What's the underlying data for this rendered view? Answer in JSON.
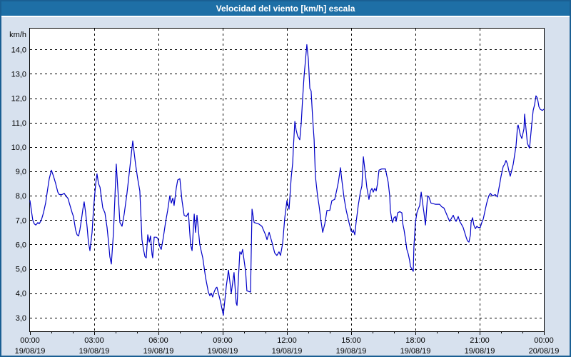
{
  "window": {
    "title": "Velocidad del viento [km/h] escala"
  },
  "colors": {
    "titlebar_bg": "#1e6fa6",
    "titlebar_text": "#ffffff",
    "window_bg": "#d7e1ee",
    "window_border": "#1a5f93",
    "plot_bg": "#ffffff",
    "plot_border": "#000000",
    "grid": "#000000",
    "line": "#0000c8",
    "label_text": "#000000"
  },
  "chart_data": {
    "type": "line",
    "title": "Velocidad del viento [km/h] escala",
    "ylabel": "km/h",
    "xlabel": "",
    "series_name": "Velocidad del viento [km/h]",
    "grid": true,
    "legend": "none",
    "ylim": [
      2.44,
      14.86
    ],
    "xlim_hours": [
      0,
      24
    ],
    "minor_tick_hours": 1,
    "y_ticks": [
      {
        "value": 3,
        "label": "3,0"
      },
      {
        "value": 4,
        "label": "4,0"
      },
      {
        "value": 5,
        "label": "5,0"
      },
      {
        "value": 6,
        "label": "6,0"
      },
      {
        "value": 7,
        "label": "7,0"
      },
      {
        "value": 8,
        "label": "8,0"
      },
      {
        "value": 9,
        "label": "9,0"
      },
      {
        "value": 10,
        "label": "10,0"
      },
      {
        "value": 11,
        "label": "11,0"
      },
      {
        "value": 12,
        "label": "12,0"
      },
      {
        "value": 13,
        "label": "13,0"
      },
      {
        "value": 14,
        "label": "14,0"
      }
    ],
    "x_ticks": [
      {
        "hour": 0,
        "time": "00:00",
        "date": "19/08/19"
      },
      {
        "hour": 3,
        "time": "03:00",
        "date": "19/08/19"
      },
      {
        "hour": 6,
        "time": "06:00",
        "date": "19/08/19"
      },
      {
        "hour": 9,
        "time": "09:00",
        "date": "19/08/19"
      },
      {
        "hour": 12,
        "time": "12:00",
        "date": "19/08/19"
      },
      {
        "hour": 15,
        "time": "15:00",
        "date": "19/08/19"
      },
      {
        "hour": 18,
        "time": "18:00",
        "date": "19/08/19"
      },
      {
        "hour": 21,
        "time": "21:00",
        "date": "19/08/19"
      },
      {
        "hour": 24,
        "time": "00:00",
        "date": "20/08/19"
      }
    ],
    "points_hours_kmh": [
      [
        0,
        7.8
      ],
      [
        0.13,
        7.0
      ],
      [
        0.2,
        6.85
      ],
      [
        0.27,
        6.8
      ],
      [
        0.37,
        6.9
      ],
      [
        0.43,
        6.85
      ],
      [
        0.53,
        7.0
      ],
      [
        0.63,
        7.3
      ],
      [
        0.73,
        7.7
      ],
      [
        0.83,
        8.3
      ],
      [
        0.9,
        8.7
      ],
      [
        1.0,
        9.05
      ],
      [
        1.1,
        8.8
      ],
      [
        1.2,
        8.5
      ],
      [
        1.3,
        8.15
      ],
      [
        1.37,
        8.05
      ],
      [
        1.5,
        8.05
      ],
      [
        1.6,
        8.1
      ],
      [
        1.67,
        8.0
      ],
      [
        1.77,
        7.9
      ],
      [
        1.87,
        7.6
      ],
      [
        1.97,
        7.3
      ],
      [
        2.03,
        7.15
      ],
      [
        2.13,
        6.6
      ],
      [
        2.2,
        6.4
      ],
      [
        2.27,
        6.35
      ],
      [
        2.33,
        6.6
      ],
      [
        2.4,
        7.0
      ],
      [
        2.47,
        7.45
      ],
      [
        2.53,
        7.75
      ],
      [
        2.6,
        7.3
      ],
      [
        2.67,
        6.7
      ],
      [
        2.73,
        6.1
      ],
      [
        2.8,
        5.75
      ],
      [
        2.9,
        6.5
      ],
      [
        2.97,
        7.5
      ],
      [
        3.07,
        8.5
      ],
      [
        3.13,
        8.9
      ],
      [
        3.2,
        8.5
      ],
      [
        3.27,
        8.35
      ],
      [
        3.4,
        7.5
      ],
      [
        3.5,
        7.3
      ],
      [
        3.6,
        6.7
      ],
      [
        3.67,
        6.1
      ],
      [
        3.73,
        5.5
      ],
      [
        3.8,
        5.2
      ],
      [
        3.9,
        6.5
      ],
      [
        3.97,
        8.0
      ],
      [
        4.03,
        9.3
      ],
      [
        4.13,
        7.9
      ],
      [
        4.2,
        6.9
      ],
      [
        4.3,
        6.75
      ],
      [
        4.4,
        7.25
      ],
      [
        4.53,
        8.1
      ],
      [
        4.67,
        9.2
      ],
      [
        4.8,
        10.25
      ],
      [
        4.93,
        9.3
      ],
      [
        5.03,
        8.7
      ],
      [
        5.13,
        8.2
      ],
      [
        5.23,
        6.2
      ],
      [
        5.3,
        5.8
      ],
      [
        5.37,
        5.5
      ],
      [
        5.43,
        5.45
      ],
      [
        5.5,
        6.4
      ],
      [
        5.57,
        6.1
      ],
      [
        5.63,
        6.35
      ],
      [
        5.7,
        5.6
      ],
      [
        5.73,
        5.45
      ],
      [
        5.8,
        6.3
      ],
      [
        5.9,
        6.3
      ],
      [
        5.97,
        6.25
      ],
      [
        6.07,
        5.9
      ],
      [
        6.13,
        5.8
      ],
      [
        6.23,
        6.3
      ],
      [
        6.33,
        6.9
      ],
      [
        6.43,
        7.4
      ],
      [
        6.53,
        8.0
      ],
      [
        6.6,
        7.7
      ],
      [
        6.67,
        7.9
      ],
      [
        6.73,
        7.6
      ],
      [
        6.83,
        8.3
      ],
      [
        6.9,
        8.65
      ],
      [
        7.0,
        8.7
      ],
      [
        7.1,
        7.8
      ],
      [
        7.2,
        7.2
      ],
      [
        7.3,
        7.15
      ],
      [
        7.4,
        7.3
      ],
      [
        7.5,
        6.0
      ],
      [
        7.57,
        5.75
      ],
      [
        7.67,
        7.25
      ],
      [
        7.73,
        6.5
      ],
      [
        7.8,
        7.2
      ],
      [
        7.93,
        6.0
      ],
      [
        8.07,
        5.45
      ],
      [
        8.2,
        4.65
      ],
      [
        8.33,
        4.05
      ],
      [
        8.4,
        3.9
      ],
      [
        8.47,
        4.0
      ],
      [
        8.53,
        3.85
      ],
      [
        8.6,
        4.05
      ],
      [
        8.67,
        4.2
      ],
      [
        8.73,
        4.25
      ],
      [
        8.83,
        3.9
      ],
      [
        8.9,
        3.65
      ],
      [
        8.97,
        3.35
      ],
      [
        9.03,
        3.1
      ],
      [
        9.1,
        3.7
      ],
      [
        9.17,
        4.3
      ],
      [
        9.27,
        4.95
      ],
      [
        9.4,
        4.0
      ],
      [
        9.53,
        4.85
      ],
      [
        9.63,
        3.6
      ],
      [
        9.67,
        3.5
      ],
      [
        9.8,
        5.7
      ],
      [
        9.87,
        5.6
      ],
      [
        9.93,
        5.8
      ],
      [
        10.07,
        4.9
      ],
      [
        10.13,
        4.1
      ],
      [
        10.3,
        4.05
      ],
      [
        10.37,
        7.45
      ],
      [
        10.47,
        6.9
      ],
      [
        10.67,
        6.85
      ],
      [
        10.83,
        6.75
      ],
      [
        11.0,
        6.4
      ],
      [
        11.07,
        6.2
      ],
      [
        11.17,
        6.5
      ],
      [
        11.33,
        6.0
      ],
      [
        11.43,
        5.65
      ],
      [
        11.53,
        5.55
      ],
      [
        11.63,
        5.7
      ],
      [
        11.7,
        5.55
      ],
      [
        11.8,
        6.05
      ],
      [
        11.9,
        7.1
      ],
      [
        12.0,
        7.8
      ],
      [
        12.1,
        7.45
      ],
      [
        12.2,
        8.75
      ],
      [
        12.27,
        9.35
      ],
      [
        12.3,
        9.95
      ],
      [
        12.37,
        11.05
      ],
      [
        12.43,
        10.7
      ],
      [
        12.5,
        10.45
      ],
      [
        12.6,
        10.3
      ],
      [
        12.67,
        11.0
      ],
      [
        12.73,
        11.95
      ],
      [
        12.8,
        12.9
      ],
      [
        12.87,
        13.6
      ],
      [
        12.93,
        14.2
      ],
      [
        13.0,
        13.6
      ],
      [
        13.07,
        12.4
      ],
      [
        13.13,
        12.3
      ],
      [
        13.2,
        11.2
      ],
      [
        13.27,
        10.3
      ],
      [
        13.33,
        8.8
      ],
      [
        13.43,
        8.0
      ],
      [
        13.5,
        7.6
      ],
      [
        13.57,
        7.1
      ],
      [
        13.67,
        6.5
      ],
      [
        13.77,
        6.85
      ],
      [
        13.87,
        7.4
      ],
      [
        14.0,
        7.4
      ],
      [
        14.1,
        7.8
      ],
      [
        14.23,
        7.85
      ],
      [
        14.33,
        8.25
      ],
      [
        14.4,
        8.55
      ],
      [
        14.5,
        9.15
      ],
      [
        14.57,
        8.6
      ],
      [
        14.67,
        7.9
      ],
      [
        14.77,
        7.4
      ],
      [
        14.9,
        6.9
      ],
      [
        15.0,
        6.55
      ],
      [
        15.07,
        6.5
      ],
      [
        15.1,
        6.6
      ],
      [
        15.17,
        6.4
      ],
      [
        15.23,
        6.9
      ],
      [
        15.33,
        7.6
      ],
      [
        15.43,
        8.15
      ],
      [
        15.5,
        8.4
      ],
      [
        15.57,
        9.6
      ],
      [
        15.67,
        8.85
      ],
      [
        15.73,
        8.35
      ],
      [
        15.83,
        7.85
      ],
      [
        15.9,
        8.2
      ],
      [
        15.97,
        8.3
      ],
      [
        16.03,
        8.15
      ],
      [
        16.1,
        8.3
      ],
      [
        16.17,
        8.2
      ],
      [
        16.23,
        8.5
      ],
      [
        16.3,
        9.05
      ],
      [
        16.43,
        9.1
      ],
      [
        16.6,
        9.1
      ],
      [
        16.73,
        8.55
      ],
      [
        16.8,
        8.0
      ],
      [
        16.83,
        7.4
      ],
      [
        16.9,
        7.0
      ],
      [
        16.93,
        6.9
      ],
      [
        17.0,
        7.1
      ],
      [
        17.07,
        7.15
      ],
      [
        17.1,
        6.95
      ],
      [
        17.17,
        7.3
      ],
      [
        17.27,
        7.35
      ],
      [
        17.37,
        7.3
      ],
      [
        17.4,
        6.9
      ],
      [
        17.47,
        6.6
      ],
      [
        17.53,
        6.25
      ],
      [
        17.6,
        5.8
      ],
      [
        17.67,
        5.6
      ],
      [
        17.73,
        5.35
      ],
      [
        17.77,
        5.1
      ],
      [
        17.83,
        5.0
      ],
      [
        17.9,
        4.9
      ],
      [
        17.93,
        5.9
      ],
      [
        18.0,
        6.9
      ],
      [
        18.07,
        7.3
      ],
      [
        18.13,
        7.45
      ],
      [
        18.2,
        7.6
      ],
      [
        18.27,
        8.15
      ],
      [
        18.4,
        7.3
      ],
      [
        18.47,
        6.8
      ],
      [
        18.57,
        8.0
      ],
      [
        18.63,
        7.95
      ],
      [
        18.73,
        7.7
      ],
      [
        18.93,
        7.65
      ],
      [
        19.13,
        7.65
      ],
      [
        19.23,
        7.55
      ],
      [
        19.33,
        7.5
      ],
      [
        19.43,
        7.3
      ],
      [
        19.5,
        7.15
      ],
      [
        19.6,
        6.95
      ],
      [
        19.67,
        7.05
      ],
      [
        19.73,
        7.15
      ],
      [
        19.77,
        7.2
      ],
      [
        19.83,
        7.05
      ],
      [
        19.9,
        6.95
      ],
      [
        20.0,
        7.15
      ],
      [
        20.07,
        6.95
      ],
      [
        20.17,
        6.8
      ],
      [
        20.23,
        6.7
      ],
      [
        20.3,
        6.5
      ],
      [
        20.37,
        6.3
      ],
      [
        20.43,
        6.15
      ],
      [
        20.5,
        6.1
      ],
      [
        20.57,
        6.4
      ],
      [
        20.6,
        6.9
      ],
      [
        20.67,
        7.1
      ],
      [
        20.73,
        6.8
      ],
      [
        20.8,
        6.65
      ],
      [
        20.87,
        6.75
      ],
      [
        20.93,
        6.7
      ],
      [
        21.03,
        6.7
      ],
      [
        21.1,
        6.9
      ],
      [
        21.17,
        7.05
      ],
      [
        21.23,
        7.3
      ],
      [
        21.33,
        7.7
      ],
      [
        21.43,
        8.0
      ],
      [
        21.5,
        8.1
      ],
      [
        21.6,
        8.0
      ],
      [
        21.73,
        8.05
      ],
      [
        21.83,
        7.95
      ],
      [
        21.9,
        8.3
      ],
      [
        22.0,
        8.8
      ],
      [
        22.1,
        9.2
      ],
      [
        22.17,
        9.3
      ],
      [
        22.23,
        9.45
      ],
      [
        22.3,
        9.3
      ],
      [
        22.37,
        9.0
      ],
      [
        22.43,
        8.8
      ],
      [
        22.57,
        9.3
      ],
      [
        22.63,
        9.65
      ],
      [
        22.7,
        10.05
      ],
      [
        22.77,
        10.85
      ],
      [
        22.8,
        10.9
      ],
      [
        22.9,
        10.5
      ],
      [
        22.97,
        10.35
      ],
      [
        23.07,
        10.75
      ],
      [
        23.1,
        11.35
      ],
      [
        23.17,
        10.7
      ],
      [
        23.23,
        10.15
      ],
      [
        23.33,
        9.95
      ],
      [
        23.43,
        10.9
      ],
      [
        23.5,
        11.5
      ],
      [
        23.57,
        11.75
      ],
      [
        23.63,
        12.1
      ],
      [
        23.7,
        12.0
      ],
      [
        23.77,
        11.65
      ],
      [
        23.83,
        11.55
      ],
      [
        23.93,
        11.5
      ],
      [
        24.0,
        11.55
      ]
    ]
  }
}
